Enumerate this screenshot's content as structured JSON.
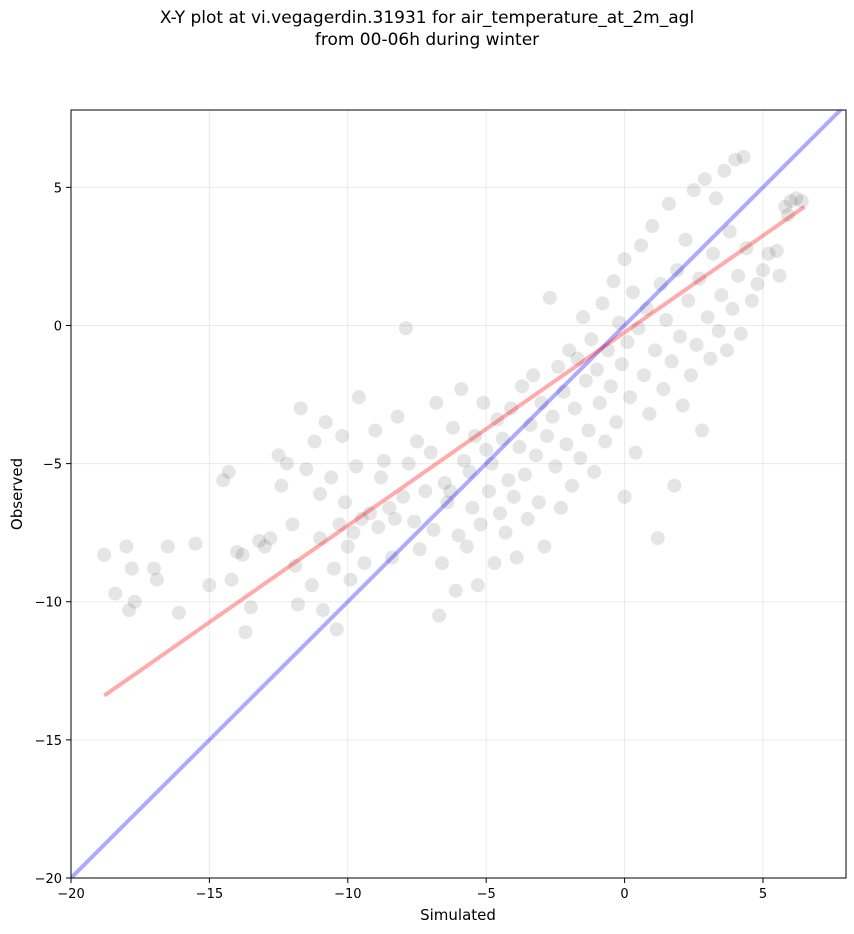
{
  "chart_data": {
    "type": "scatter",
    "title_line1": "X-Y plot at vi.vegagerdin.31931 for air_temperature_at_2m_agl",
    "title_line2": "from 00-06h during winter",
    "xlabel": "Simulated",
    "ylabel": "Observed",
    "xlim": [
      -20,
      8
    ],
    "ylim": [
      -20,
      7.8
    ],
    "xticks": [
      -20,
      -15,
      -10,
      -5,
      0,
      5
    ],
    "yticks": [
      -20,
      -15,
      -10,
      -5,
      0,
      5
    ],
    "grid": true,
    "point_color": "#000000",
    "point_opacity": 0.1,
    "identity_line": {
      "color": "#0000ff",
      "x": [
        -20,
        8
      ],
      "y": [
        -20,
        8
      ]
    },
    "regression_line": {
      "color": "#ff0000",
      "x": [
        -18.8,
        6.5
      ],
      "y": [
        -13.4,
        4.3
      ]
    },
    "series": [
      {
        "points": [
          [
            -18.8,
            -8.3
          ],
          [
            -18.4,
            -9.7
          ],
          [
            -18.0,
            -8.0
          ],
          [
            -17.8,
            -8.8
          ],
          [
            -17.7,
            -10.0
          ],
          [
            -17.9,
            -10.3
          ],
          [
            -17.0,
            -8.8
          ],
          [
            -16.9,
            -9.2
          ],
          [
            -16.5,
            -8.0
          ],
          [
            -16.1,
            -10.4
          ],
          [
            -15.5,
            -7.9
          ],
          [
            -15.0,
            -9.4
          ],
          [
            -14.5,
            -5.6
          ],
          [
            -14.3,
            -5.3
          ],
          [
            -14.2,
            -9.2
          ],
          [
            -14.0,
            -8.2
          ],
          [
            -13.8,
            -8.3
          ],
          [
            -13.7,
            -11.1
          ],
          [
            -13.5,
            -10.2
          ],
          [
            -13.2,
            -7.8
          ],
          [
            -13.0,
            -8.0
          ],
          [
            -12.8,
            -7.7
          ],
          [
            -12.5,
            -4.7
          ],
          [
            -12.4,
            -5.8
          ],
          [
            -12.2,
            -5.0
          ],
          [
            -12.0,
            -7.2
          ],
          [
            -11.9,
            -8.7
          ],
          [
            -11.8,
            -10.1
          ],
          [
            -11.7,
            -3.0
          ],
          [
            -11.5,
            -5.2
          ],
          [
            -11.3,
            -9.4
          ],
          [
            -11.2,
            -4.2
          ],
          [
            -11.0,
            -6.1
          ],
          [
            -11.0,
            -7.7
          ],
          [
            -10.9,
            -10.3
          ],
          [
            -10.8,
            -3.5
          ],
          [
            -10.6,
            -5.5
          ],
          [
            -10.5,
            -8.8
          ],
          [
            -10.4,
            -11.0
          ],
          [
            -10.3,
            -7.2
          ],
          [
            -10.2,
            -4.0
          ],
          [
            -10.1,
            -6.4
          ],
          [
            -10.0,
            -8.0
          ],
          [
            -9.9,
            -9.2
          ],
          [
            -9.8,
            -7.5
          ],
          [
            -9.7,
            -5.1
          ],
          [
            -9.6,
            -2.6
          ],
          [
            -9.5,
            -7.0
          ],
          [
            -9.4,
            -8.6
          ],
          [
            -9.2,
            -6.8
          ],
          [
            -9.0,
            -3.8
          ],
          [
            -8.9,
            -7.3
          ],
          [
            -8.8,
            -5.5
          ],
          [
            -8.7,
            -4.9
          ],
          [
            -8.5,
            -6.6
          ],
          [
            -8.4,
            -8.4
          ],
          [
            -8.3,
            -7.0
          ],
          [
            -8.2,
            -3.3
          ],
          [
            -8.0,
            -6.2
          ],
          [
            -7.9,
            -0.1
          ],
          [
            -7.8,
            -5.0
          ],
          [
            -7.6,
            -7.1
          ],
          [
            -7.5,
            -4.2
          ],
          [
            -7.4,
            -8.1
          ],
          [
            -7.2,
            -6.0
          ],
          [
            -7.0,
            -4.6
          ],
          [
            -6.9,
            -7.4
          ],
          [
            -6.8,
            -2.8
          ],
          [
            -6.7,
            -10.5
          ],
          [
            -6.6,
            -8.6
          ],
          [
            -6.5,
            -5.7
          ],
          [
            -6.4,
            -6.4
          ],
          [
            -6.3,
            -6.0
          ],
          [
            -6.2,
            -3.7
          ],
          [
            -6.1,
            -9.6
          ],
          [
            -6.0,
            -7.6
          ],
          [
            -5.9,
            -2.3
          ],
          [
            -5.8,
            -4.9
          ],
          [
            -5.7,
            -8.0
          ],
          [
            -5.6,
            -5.3
          ],
          [
            -5.5,
            -6.6
          ],
          [
            -5.4,
            -4.0
          ],
          [
            -5.3,
            -9.4
          ],
          [
            -5.2,
            -7.2
          ],
          [
            -5.1,
            -2.8
          ],
          [
            -5.0,
            -4.5
          ],
          [
            -4.9,
            -6.0
          ],
          [
            -4.8,
            -5.0
          ],
          [
            -4.7,
            -8.6
          ],
          [
            -4.6,
            -3.4
          ],
          [
            -4.5,
            -6.8
          ],
          [
            -4.4,
            -4.1
          ],
          [
            -4.3,
            -7.5
          ],
          [
            -4.2,
            -5.6
          ],
          [
            -4.1,
            -3.0
          ],
          [
            -4.0,
            -6.2
          ],
          [
            -3.9,
            -8.4
          ],
          [
            -3.8,
            -4.4
          ],
          [
            -3.7,
            -2.2
          ],
          [
            -3.6,
            -5.4
          ],
          [
            -3.5,
            -7.0
          ],
          [
            -3.4,
            -3.6
          ],
          [
            -3.3,
            -1.8
          ],
          [
            -3.2,
            -4.7
          ],
          [
            -3.1,
            -6.4
          ],
          [
            -3.0,
            -2.8
          ],
          [
            -2.9,
            -8.0
          ],
          [
            -2.8,
            -4.0
          ],
          [
            -2.7,
            1.0
          ],
          [
            -2.6,
            -3.3
          ],
          [
            -2.5,
            -5.1
          ],
          [
            -2.4,
            -1.5
          ],
          [
            -2.3,
            -6.6
          ],
          [
            -2.2,
            -2.4
          ],
          [
            -2.1,
            -4.3
          ],
          [
            -2.0,
            -0.9
          ],
          [
            -1.9,
            -5.8
          ],
          [
            -1.8,
            -3.0
          ],
          [
            -1.7,
            -1.2
          ],
          [
            -1.6,
            -4.8
          ],
          [
            -1.5,
            0.3
          ],
          [
            -1.4,
            -2.0
          ],
          [
            -1.3,
            -3.8
          ],
          [
            -1.2,
            -0.5
          ],
          [
            -1.1,
            -5.3
          ],
          [
            -1.0,
            -1.6
          ],
          [
            -0.9,
            -2.8
          ],
          [
            -0.8,
            0.8
          ],
          [
            -0.7,
            -4.2
          ],
          [
            -0.6,
            -0.9
          ],
          [
            -0.5,
            -2.2
          ],
          [
            -0.4,
            1.6
          ],
          [
            -0.3,
            -3.5
          ],
          [
            -0.2,
            0.1
          ],
          [
            -0.1,
            -1.4
          ],
          [
            0.0,
            2.4
          ],
          [
            0.0,
            -6.2
          ],
          [
            0.1,
            -0.6
          ],
          [
            0.2,
            -2.6
          ],
          [
            0.3,
            1.2
          ],
          [
            0.4,
            -4.6
          ],
          [
            0.5,
            -0.1
          ],
          [
            0.6,
            2.9
          ],
          [
            0.7,
            -1.8
          ],
          [
            0.8,
            0.6
          ],
          [
            0.9,
            -3.2
          ],
          [
            1.0,
            3.6
          ],
          [
            1.1,
            -0.9
          ],
          [
            1.2,
            -7.7
          ],
          [
            1.3,
            1.5
          ],
          [
            1.4,
            -2.3
          ],
          [
            1.5,
            0.2
          ],
          [
            1.6,
            4.4
          ],
          [
            1.7,
            -1.3
          ],
          [
            1.8,
            -5.8
          ],
          [
            1.9,
            2.0
          ],
          [
            2.0,
            -0.4
          ],
          [
            2.1,
            -2.9
          ],
          [
            2.2,
            3.1
          ],
          [
            2.3,
            0.9
          ],
          [
            2.4,
            -1.8
          ],
          [
            2.5,
            4.9
          ],
          [
            2.6,
            -0.7
          ],
          [
            2.7,
            1.7
          ],
          [
            2.8,
            -3.8
          ],
          [
            2.9,
            5.3
          ],
          [
            3.0,
            0.3
          ],
          [
            3.1,
            -1.2
          ],
          [
            3.2,
            2.6
          ],
          [
            3.3,
            4.6
          ],
          [
            3.4,
            -0.2
          ],
          [
            3.5,
            1.1
          ],
          [
            3.6,
            5.6
          ],
          [
            3.7,
            -0.9
          ],
          [
            3.8,
            3.4
          ],
          [
            3.9,
            0.6
          ],
          [
            4.0,
            6.0
          ],
          [
            4.1,
            1.8
          ],
          [
            4.2,
            -0.3
          ],
          [
            4.3,
            6.1
          ],
          [
            4.4,
            2.8
          ],
          [
            4.6,
            0.9
          ],
          [
            4.8,
            1.5
          ],
          [
            5.0,
            2.0
          ],
          [
            5.2,
            2.6
          ],
          [
            5.5,
            2.7
          ],
          [
            5.8,
            4.3
          ],
          [
            6.0,
            4.5
          ],
          [
            6.2,
            4.6
          ],
          [
            5.6,
            1.8
          ],
          [
            5.9,
            4.0
          ],
          [
            6.4,
            4.5
          ]
        ]
      }
    ]
  }
}
